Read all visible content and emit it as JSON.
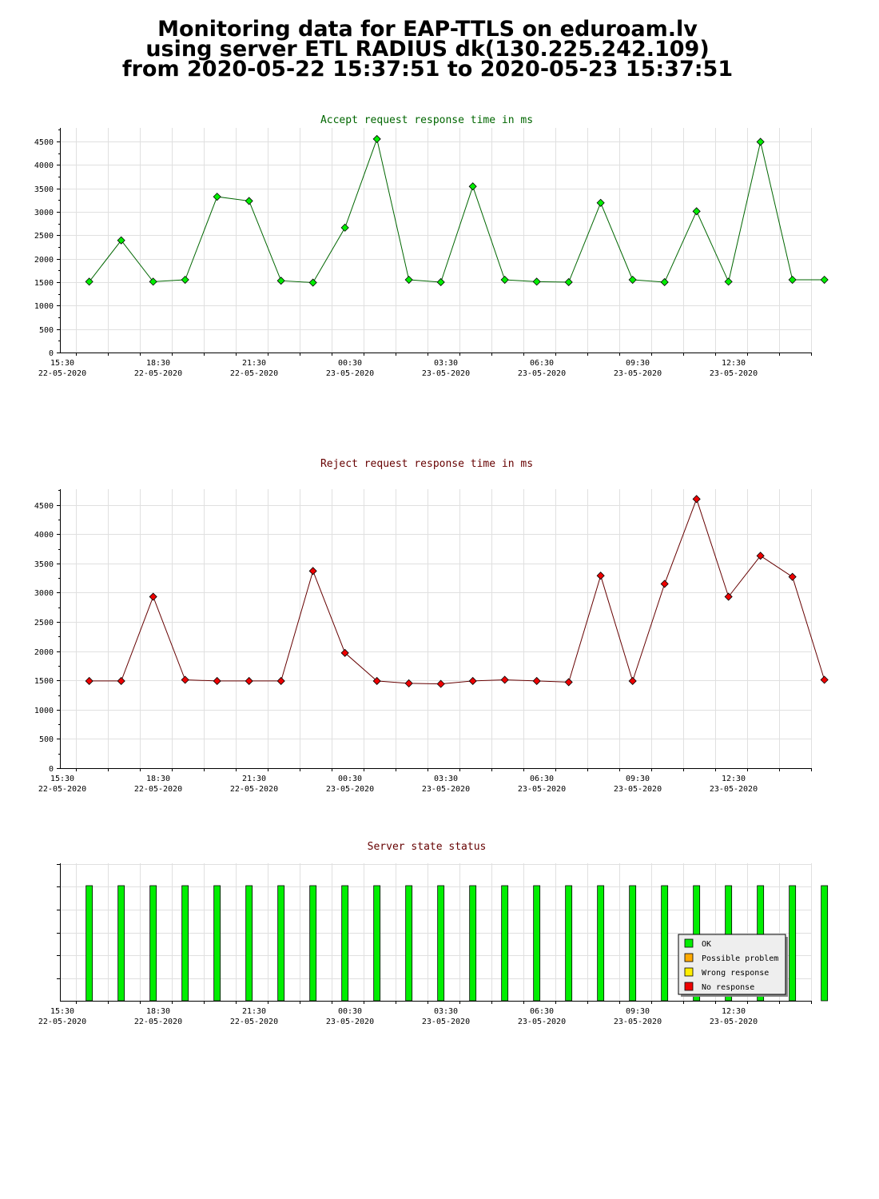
{
  "header": {
    "line1": "Monitoring data for EAP-TTLS on eduroam.lv",
    "line2": "using server ETL RADIUS dk(130.225.242.109)",
    "line3": "from 2020-05-22 15:37:51 to 2020-05-23 15:37:51"
  },
  "colors": {
    "accept_marker": "#00ee00",
    "accept_line": "#006600",
    "accept_title": "#006600",
    "reject_marker": "#ee0000",
    "reject_line": "#660000",
    "reject_title": "#660000",
    "status_title": "#660000",
    "ok": "#00ee00",
    "possible_problem": "#ffaa00",
    "wrong_response": "#ffee00",
    "no_response": "#ee0000"
  },
  "chart_data": [
    {
      "id": "accept",
      "type": "line",
      "title": "Accept request response time in ms",
      "xlabel": "",
      "ylabel": "",
      "ylim": [
        0,
        4600
      ],
      "y_ticks": [
        "0",
        "500",
        "1000",
        "1500",
        "2000",
        "2500",
        "3000",
        "3500",
        "4000",
        "4500"
      ],
      "x_tick_labels": [
        {
          "time": "15:30",
          "date": "22-05-2020"
        },
        {
          "time": "18:30",
          "date": "22-05-2020"
        },
        {
          "time": "21:30",
          "date": "22-05-2020"
        },
        {
          "time": "00:30",
          "date": "23-05-2020"
        },
        {
          "time": "03:30",
          "date": "23-05-2020"
        },
        {
          "time": "06:30",
          "date": "23-05-2020"
        },
        {
          "time": "09:30",
          "date": "23-05-2020"
        },
        {
          "time": "12:30",
          "date": "23-05-2020"
        }
      ],
      "x": [
        "15:55",
        "16:55",
        "17:55",
        "18:55",
        "19:55",
        "20:55",
        "21:55",
        "22:55",
        "23:55",
        "00:55",
        "01:55",
        "02:55",
        "03:55",
        "04:55",
        "05:55",
        "06:55",
        "07:55",
        "08:55",
        "09:55",
        "10:55",
        "11:55",
        "12:55",
        "13:55",
        "14:55"
      ],
      "grid": true,
      "series": [
        {
          "values": [
            1510,
            2390,
            1510,
            1550,
            3320,
            3230,
            1530,
            1490,
            2660,
            4550,
            1550,
            1500,
            3540,
            1550,
            1510,
            1500,
            3190,
            1550,
            1500,
            3010,
            1510,
            4490,
            1550,
            1550
          ]
        }
      ]
    },
    {
      "id": "reject",
      "type": "line",
      "title": "Reject request response time in ms",
      "xlabel": "",
      "ylabel": "",
      "ylim": [
        0,
        4700
      ],
      "y_ticks": [
        "0",
        "500",
        "1000",
        "1500",
        "2000",
        "2500",
        "3000",
        "3500",
        "4000",
        "4500"
      ],
      "x_tick_labels": [
        {
          "time": "15:30",
          "date": "22-05-2020"
        },
        {
          "time": "18:30",
          "date": "22-05-2020"
        },
        {
          "time": "21:30",
          "date": "22-05-2020"
        },
        {
          "time": "00:30",
          "date": "23-05-2020"
        },
        {
          "time": "03:30",
          "date": "23-05-2020"
        },
        {
          "time": "06:30",
          "date": "23-05-2020"
        },
        {
          "time": "09:30",
          "date": "23-05-2020"
        },
        {
          "time": "12:30",
          "date": "23-05-2020"
        }
      ],
      "x": [
        "15:55",
        "16:55",
        "17:55",
        "18:55",
        "19:55",
        "20:55",
        "21:55",
        "22:55",
        "23:55",
        "00:55",
        "01:55",
        "02:55",
        "03:55",
        "04:55",
        "05:55",
        "06:55",
        "07:55",
        "08:55",
        "09:55",
        "10:55",
        "11:55",
        "12:55",
        "13:55",
        "14:55"
      ],
      "grid": true,
      "series": [
        {
          "values": [
            1490,
            1490,
            2930,
            1510,
            1490,
            1490,
            1490,
            3370,
            1970,
            1490,
            1450,
            1440,
            1490,
            1510,
            1490,
            1470,
            3290,
            1490,
            3150,
            4600,
            2930,
            3630,
            3270,
            1510
          ]
        }
      ]
    },
    {
      "id": "status",
      "type": "bar",
      "title": "Server state status",
      "xlabel": "",
      "ylabel": "",
      "grid": true,
      "x_tick_labels": [
        {
          "time": "15:30",
          "date": "22-05-2020"
        },
        {
          "time": "18:30",
          "date": "22-05-2020"
        },
        {
          "time": "21:30",
          "date": "22-05-2020"
        },
        {
          "time": "00:30",
          "date": "23-05-2020"
        },
        {
          "time": "03:30",
          "date": "23-05-2020"
        },
        {
          "time": "06:30",
          "date": "23-05-2020"
        },
        {
          "time": "09:30",
          "date": "23-05-2020"
        },
        {
          "time": "12:30",
          "date": "23-05-2020"
        }
      ],
      "x": [
        "15:55",
        "16:55",
        "17:55",
        "18:55",
        "19:55",
        "20:55",
        "21:55",
        "22:55",
        "23:55",
        "00:55",
        "01:55",
        "02:55",
        "03:55",
        "04:55",
        "05:55",
        "06:55",
        "07:55",
        "08:55",
        "09:55",
        "10:55",
        "11:55",
        "12:55",
        "13:55",
        "14:55"
      ],
      "states": [
        "OK",
        "OK",
        "OK",
        "OK",
        "OK",
        "OK",
        "OK",
        "OK",
        "OK",
        "OK",
        "OK",
        "OK",
        "OK",
        "OK",
        "OK",
        "OK",
        "OK",
        "OK",
        "OK",
        "OK",
        "OK",
        "OK",
        "OK",
        "OK"
      ],
      "legend": {
        "placement": "bottom-right",
        "items": [
          {
            "label": "OK",
            "color": "#00ee00"
          },
          {
            "label": "Possible problem",
            "color": "#ffaa00"
          },
          {
            "label": "Wrong response",
            "color": "#ffee00"
          },
          {
            "label": "No response",
            "color": "#ee0000"
          }
        ]
      }
    }
  ]
}
